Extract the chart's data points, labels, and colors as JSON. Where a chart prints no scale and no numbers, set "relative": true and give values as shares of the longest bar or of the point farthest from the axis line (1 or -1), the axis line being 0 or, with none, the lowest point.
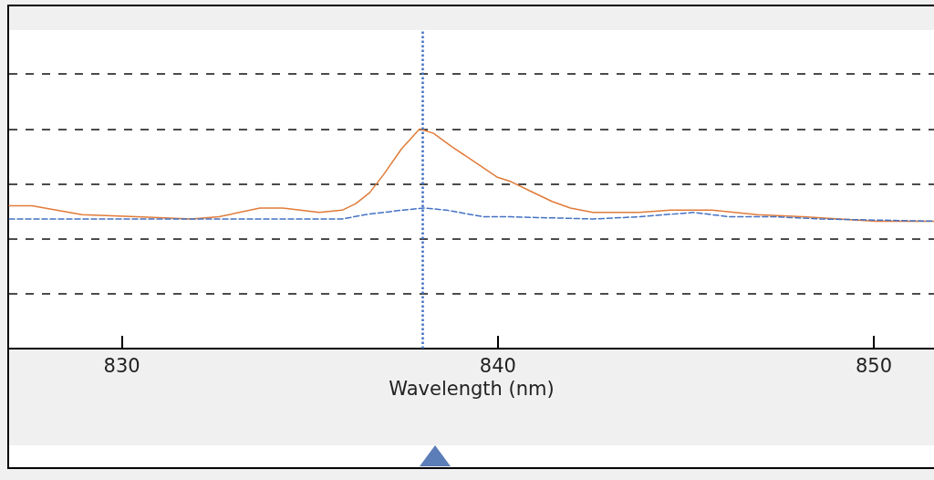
{
  "chart_data": {
    "type": "line",
    "xlabel": "Wavelength (nm)",
    "relative": true,
    "grid": "y",
    "marker": "none",
    "xlim": [
      827,
      851.6
    ],
    "xticks": [
      830,
      840,
      850
    ],
    "series": [
      {
        "color": "#e07b39",
        "line_style": "solid",
        "x": [
          827,
          827.61,
          828.94,
          830.4,
          831.85,
          832.58,
          833.67,
          834.28,
          835.25,
          835.86,
          836.22,
          836.59,
          836.95,
          837.44,
          837.92,
          838.29,
          838.77,
          839.38,
          839.99,
          840.35,
          840.83,
          841.44,
          841.93,
          842.53,
          843.75,
          844.6,
          845.69,
          846.9,
          848.12,
          849.09,
          850.06,
          851.6
        ],
        "values": [
          0.65,
          0.65,
          0.61,
          0.6,
          0.59,
          0.6,
          0.64,
          0.64,
          0.62,
          0.63,
          0.66,
          0.71,
          0.79,
          0.91,
          1.0,
          0.98,
          0.92,
          0.85,
          0.78,
          0.76,
          0.72,
          0.67,
          0.64,
          0.62,
          0.62,
          0.63,
          0.63,
          0.61,
          0.6,
          0.59,
          0.58,
          0.58
        ]
      },
      {
        "color": "#4472c4",
        "line_style": "dashed",
        "x": [
          827,
          830.4,
          833.67,
          835.86,
          836.47,
          837.44,
          838.04,
          838.65,
          839.62,
          840.35,
          842.53,
          843.75,
          845.2,
          846.17,
          847.39,
          848.6,
          851.6
        ],
        "values": [
          0.59,
          0.59,
          0.59,
          0.59,
          0.61,
          0.63,
          0.64,
          0.63,
          0.6,
          0.6,
          0.59,
          0.6,
          0.62,
          0.6,
          0.6,
          0.59,
          0.58
        ]
      }
    ],
    "ref_lines": [
      {
        "axis": "x",
        "value": 838.0,
        "color": "#4472c4",
        "line_style": "dotted"
      }
    ]
  }
}
